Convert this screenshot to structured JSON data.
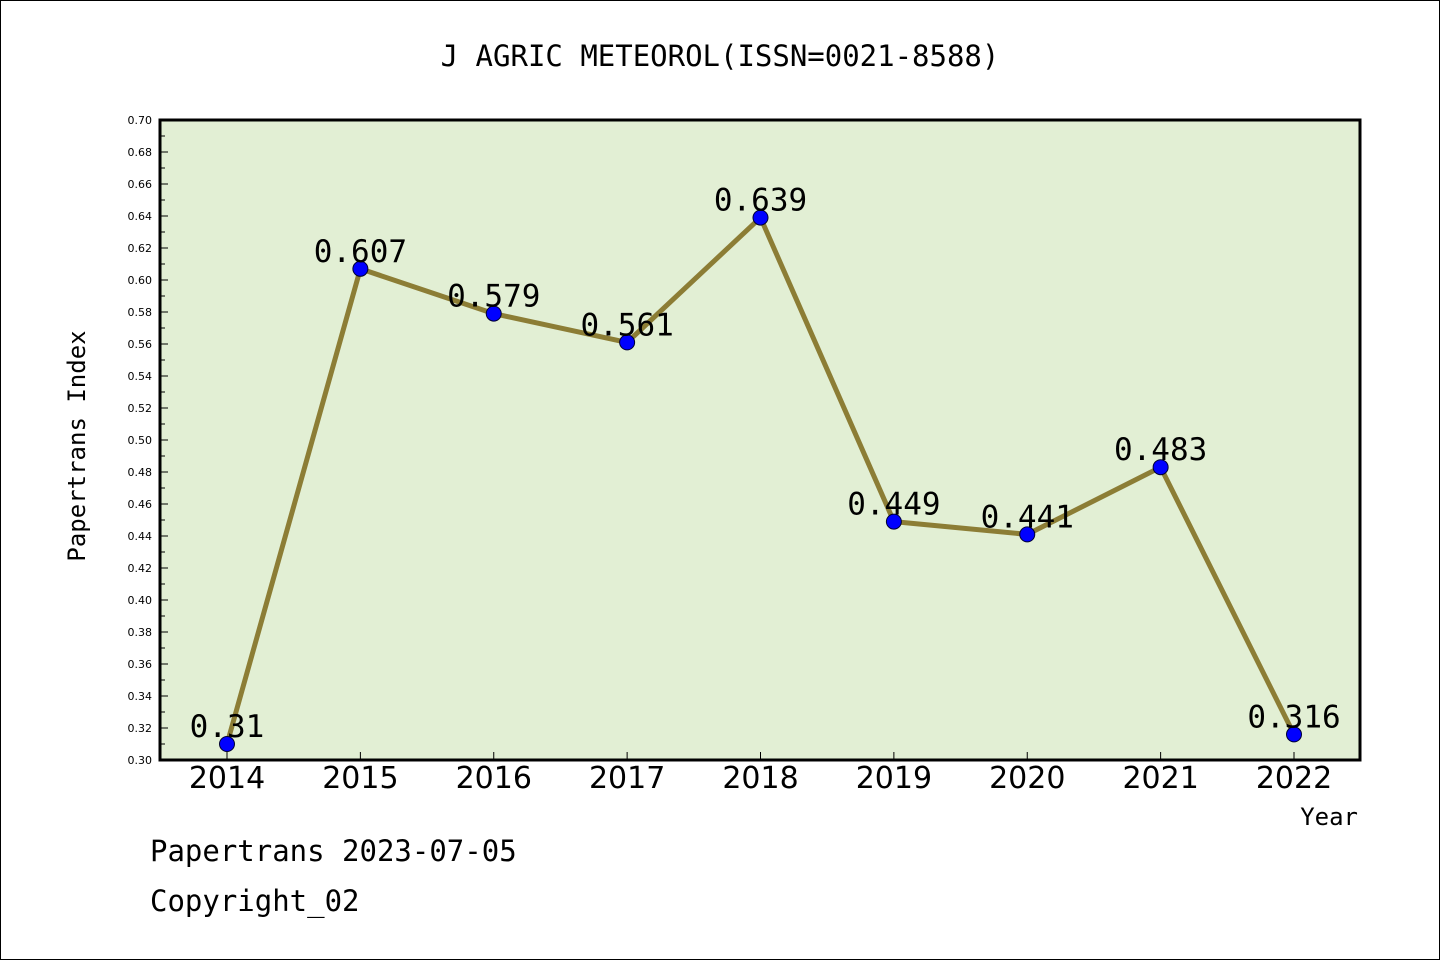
{
  "chart_data": {
    "type": "line",
    "title": "J AGRIC METEOROL(ISSN=0021-8588)",
    "xlabel": "Year",
    "ylabel": "Papertrans Index",
    "categories": [
      "2014",
      "2015",
      "2016",
      "2017",
      "2018",
      "2019",
      "2020",
      "2021",
      "2022"
    ],
    "series": [
      {
        "values": [
          0.31,
          0.607,
          0.579,
          0.561,
          0.639,
          0.449,
          0.441,
          0.483,
          0.316
        ],
        "labels": [
          "0.31",
          "0.607",
          "0.579",
          "0.561",
          "0.639",
          "0.449",
          "0.441",
          "0.483",
          "0.316"
        ]
      }
    ],
    "ylim": [
      0.3,
      0.7
    ],
    "yticks": [
      "0.30",
      "0.32",
      "0.34",
      "0.36",
      "0.38",
      "0.40",
      "0.42",
      "0.44",
      "0.46",
      "0.48",
      "0.50",
      "0.52",
      "0.54",
      "0.56",
      "0.58",
      "0.60",
      "0.62",
      "0.64",
      "0.66",
      "0.68",
      "0.70"
    ],
    "grid": false,
    "legend": "none",
    "colors": {
      "plot_background": "#e2efd4",
      "line": "#8c7d35",
      "marker": "#0000ff"
    }
  },
  "footer": {
    "line1": "Papertrans 2023-07-05",
    "line2": "Copyright_02"
  }
}
